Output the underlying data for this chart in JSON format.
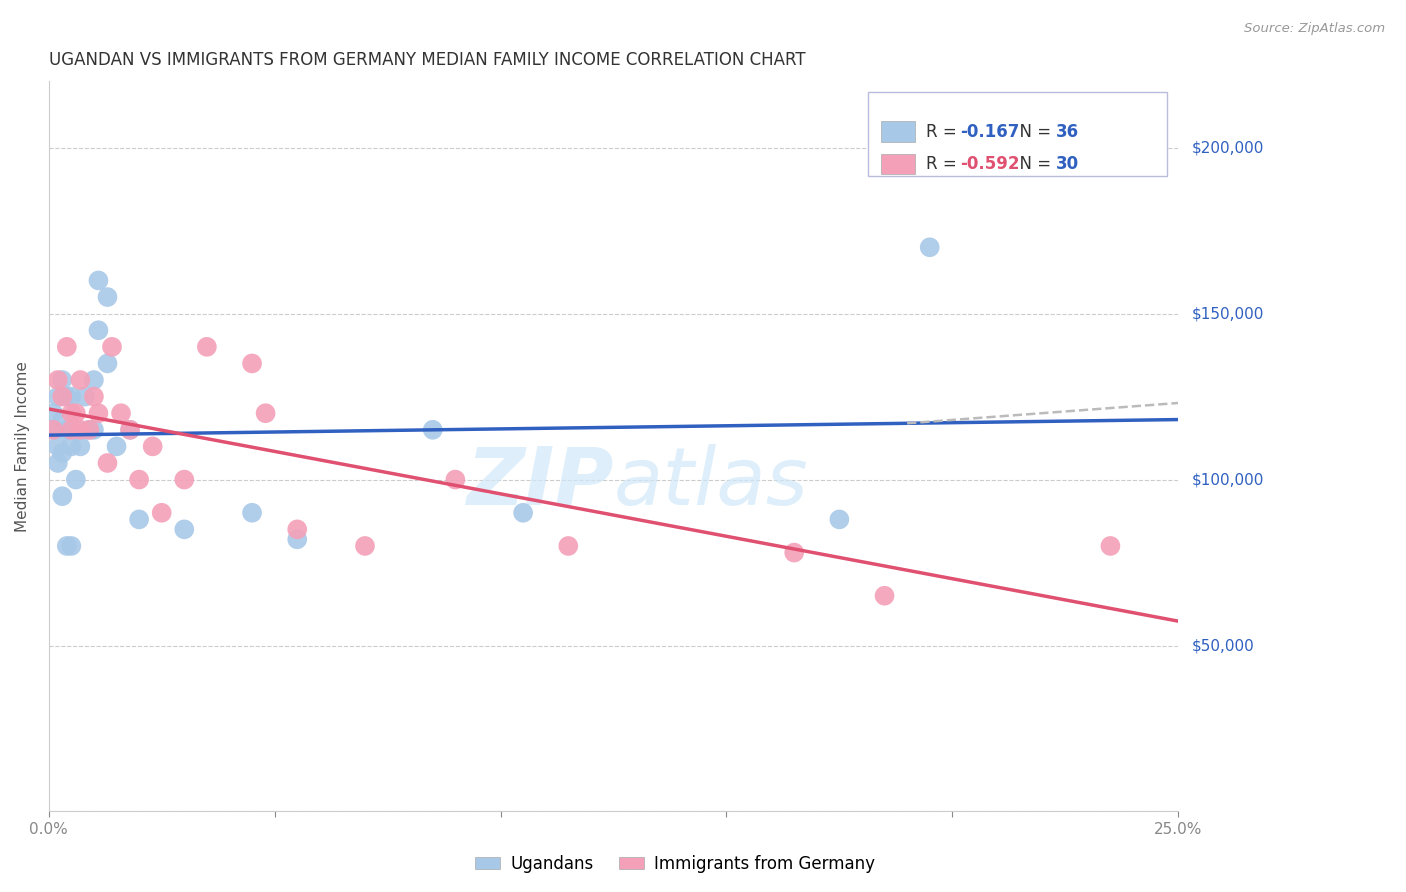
{
  "title": "UGANDAN VS IMMIGRANTS FROM GERMANY MEDIAN FAMILY INCOME CORRELATION CHART",
  "source": "Source: ZipAtlas.com",
  "ylabel": "Median Family Income",
  "xlim": [
    0.0,
    0.25
  ],
  "ylim": [
    0,
    220000
  ],
  "yticks": [
    0,
    50000,
    100000,
    150000,
    200000
  ],
  "ytick_labels": [
    "",
    "$50,000",
    "$100,000",
    "$150,000",
    "$200,000"
  ],
  "xticks": [
    0.0,
    0.05,
    0.1,
    0.15,
    0.2,
    0.25
  ],
  "xtick_labels": [
    "0.0%",
    "",
    "",
    "",
    "",
    "25.0%"
  ],
  "legend_blue_r": "-0.167",
  "legend_blue_n": "36",
  "legend_pink_r": "-0.592",
  "legend_pink_n": "30",
  "blue_scatter_color": "#a8c8e8",
  "pink_scatter_color": "#f4a0b8",
  "blue_line_color": "#3060c0",
  "pink_line_color": "#e05070",
  "dash_line_color": "#bbbbbb",
  "watermark_color": "#d0e8f8",
  "background_color": "#ffffff",
  "grid_color": "#cccccc",
  "legend_r_blue": "#3060c0",
  "legend_r_pink": "#e05070",
  "legend_n_color": "#3060c0",
  "ugandans_x": [
    0.001,
    0.001,
    0.002,
    0.002,
    0.002,
    0.003,
    0.003,
    0.003,
    0.003,
    0.004,
    0.004,
    0.004,
    0.005,
    0.005,
    0.005,
    0.006,
    0.006,
    0.007,
    0.008,
    0.009,
    0.01,
    0.01,
    0.011,
    0.011,
    0.013,
    0.013,
    0.015,
    0.018,
    0.02,
    0.03,
    0.045,
    0.055,
    0.085,
    0.105,
    0.175,
    0.195
  ],
  "ugandans_y": [
    115000,
    120000,
    125000,
    110000,
    105000,
    130000,
    118000,
    108000,
    95000,
    125000,
    115000,
    80000,
    125000,
    110000,
    80000,
    115000,
    100000,
    110000,
    125000,
    115000,
    130000,
    115000,
    160000,
    145000,
    155000,
    135000,
    110000,
    115000,
    88000,
    85000,
    90000,
    82000,
    115000,
    90000,
    88000,
    170000
  ],
  "germany_x": [
    0.001,
    0.002,
    0.003,
    0.004,
    0.005,
    0.005,
    0.006,
    0.007,
    0.007,
    0.009,
    0.01,
    0.011,
    0.013,
    0.014,
    0.016,
    0.018,
    0.02,
    0.023,
    0.025,
    0.03,
    0.035,
    0.045,
    0.048,
    0.055,
    0.07,
    0.09,
    0.115,
    0.165,
    0.185,
    0.235
  ],
  "germany_y": [
    115000,
    130000,
    125000,
    140000,
    120000,
    115000,
    120000,
    115000,
    130000,
    115000,
    125000,
    120000,
    105000,
    140000,
    120000,
    115000,
    100000,
    110000,
    90000,
    100000,
    140000,
    135000,
    120000,
    85000,
    80000,
    100000,
    80000,
    78000,
    65000,
    80000
  ]
}
